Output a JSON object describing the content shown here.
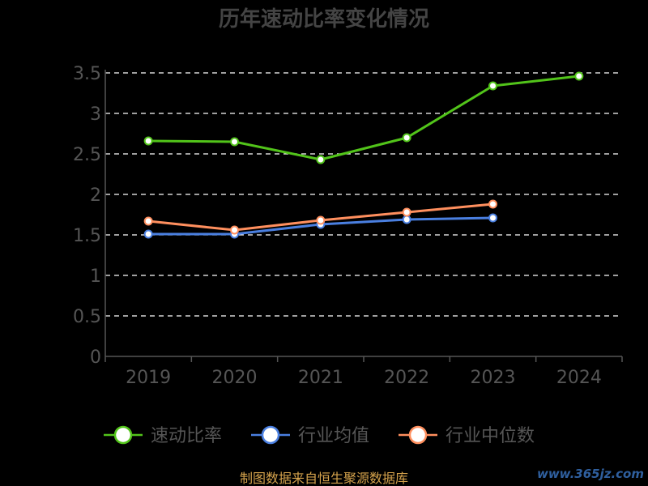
{
  "chart_data": {
    "type": "line",
    "title": "历年速动比率变化情况",
    "categories": [
      "2019",
      "2020",
      "2021",
      "2022",
      "2023",
      "2024"
    ],
    "ylim": [
      0,
      3.5
    ],
    "yticks": [
      "0",
      "0.5",
      "1",
      "1.5",
      "2",
      "2.5",
      "3",
      "3.5"
    ],
    "grid": true,
    "legend_position": "bottom",
    "series": [
      {
        "name": "速动比率",
        "color": "#52c41a",
        "values": [
          2.66,
          2.65,
          2.43,
          2.7,
          3.34,
          3.46
        ]
      },
      {
        "name": "行业均值",
        "color": "#4a7fe0",
        "values": [
          1.51,
          1.51,
          1.63,
          1.69,
          1.71,
          null
        ]
      },
      {
        "name": "行业中位数",
        "color": "#ff8f5e",
        "values": [
          1.67,
          1.56,
          1.68,
          1.78,
          1.88,
          null
        ]
      }
    ]
  },
  "source_text": "制图数据来自恒生聚源数据库",
  "watermark": "www.365jz.com"
}
